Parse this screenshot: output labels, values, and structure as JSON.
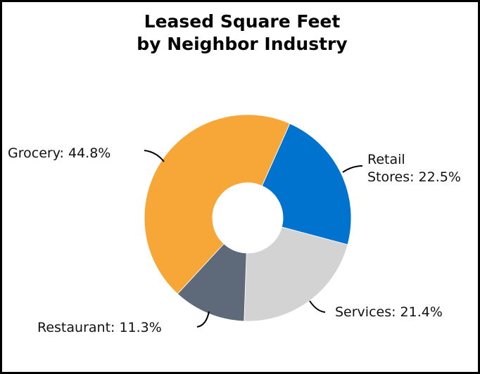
{
  "chart_data": {
    "type": "pie",
    "subtype": "donut",
    "title": "Leased Square Feet by Neighbor Industry",
    "title_lines": [
      "Leased Square Feet",
      "by Neighbor Industry"
    ],
    "categories": [
      "Retail Stores",
      "Services",
      "Restaurant",
      "Grocery"
    ],
    "values": [
      22.5,
      21.4,
      11.3,
      44.8
    ],
    "unit": "%",
    "colors": [
      "#0073CF",
      "#D3D3D3",
      "#5E6A79",
      "#F7A738"
    ],
    "labels": [
      {
        "lines": [
          "Retail",
          "Stores: 22.5%"
        ]
      },
      {
        "lines": [
          "Services: 21.4%"
        ]
      },
      {
        "lines": [
          "Restaurant: 11.3%"
        ]
      },
      {
        "lines": [
          "Grocery: 44.8%"
        ]
      }
    ],
    "start_angle_deg": 24,
    "direction": "clockwise",
    "legend": "none (data labels with leader lines)"
  }
}
